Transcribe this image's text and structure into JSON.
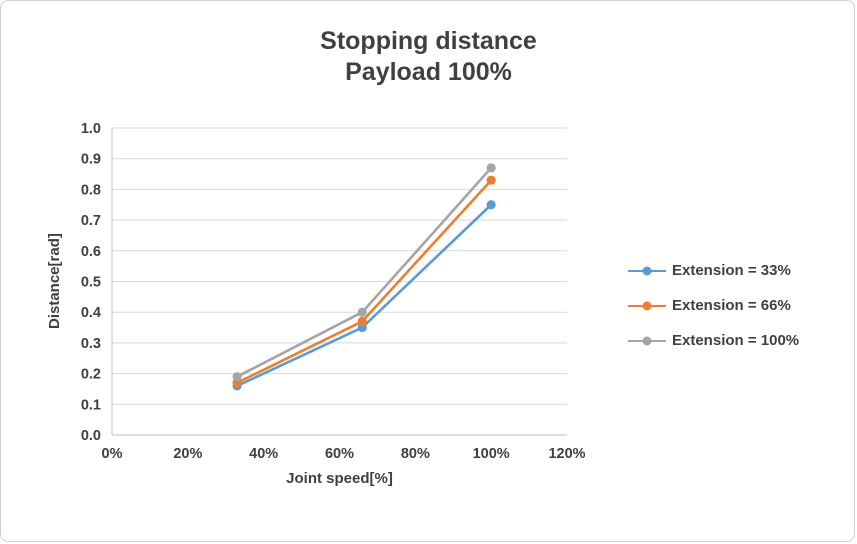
{
  "window": {
    "background": "#ffffff",
    "border_color": "#cfcfcf"
  },
  "chart_data": {
    "type": "line",
    "title_lines": [
      "Stopping distance",
      "Payload 100%"
    ],
    "xlabel": "Joint speed[%]",
    "ylabel": "Distance[rad]",
    "xlim": [
      0,
      120
    ],
    "ylim": [
      0.0,
      1.0
    ],
    "x_ticks": [
      0,
      20,
      40,
      60,
      80,
      100,
      120
    ],
    "x_tick_labels": [
      "0%",
      "20%",
      "40%",
      "60%",
      "80%",
      "100%",
      "120%"
    ],
    "y_ticks": [
      0.0,
      0.1,
      0.2,
      0.3,
      0.4,
      0.5,
      0.6,
      0.7,
      0.8,
      0.9,
      1.0
    ],
    "y_tick_labels": [
      "0.0",
      "0.1",
      "0.2",
      "0.3",
      "0.4",
      "0.5",
      "0.6",
      "0.7",
      "0.8",
      "0.9",
      "1.0"
    ],
    "x": [
      33,
      66,
      100
    ],
    "series": [
      {
        "name": "Extension = 33%",
        "color": "#5B9BD5",
        "values": [
          0.16,
          0.35,
          0.75
        ]
      },
      {
        "name": "Extension = 66%",
        "color": "#ED7D31",
        "values": [
          0.17,
          0.37,
          0.83
        ]
      },
      {
        "name": "Extension = 100%",
        "color": "#A5A5A5",
        "values": [
          0.19,
          0.4,
          0.87
        ]
      }
    ],
    "grid": "horizontal",
    "legend_position": "right",
    "marker": "circle",
    "colors": {
      "title_text": "#404040",
      "axis_text": "#404040",
      "gridline": "#D9D9D9",
      "axis_line": "#BFBFBF"
    }
  }
}
